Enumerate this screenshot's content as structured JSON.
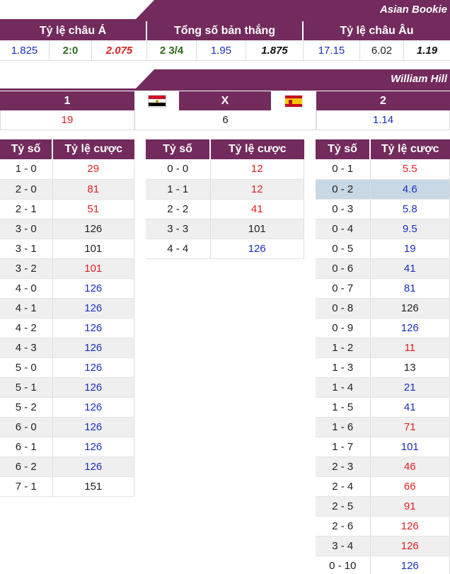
{
  "asian_bookie": {
    "title": "Asian Bookie",
    "headers": [
      "Tỷ lệ châu Á",
      "Tổng số bản thắng",
      "Tỷ lệ châu Âu"
    ],
    "values": [
      "1.825",
      "2:0",
      "2.075",
      "2 3/4",
      "1.95",
      "1.875",
      "17.15",
      "6.02",
      "1.19"
    ]
  },
  "william_hill": {
    "title": "William Hill",
    "home_label": "1",
    "draw_label": "X",
    "away_label": "2",
    "home_flag": "egypt-flag-icon",
    "away_flag": "spain-flag-icon",
    "home_value": "19",
    "draw_value": "6",
    "away_value": "1.14"
  },
  "score_tables": {
    "header_score": "Tỷ số",
    "header_odds": "Tỷ lệ cược",
    "home_wins": [
      {
        "score": "1 - 0",
        "odds": "29",
        "color": "red"
      },
      {
        "score": "2 - 0",
        "odds": "81",
        "color": "red"
      },
      {
        "score": "2 - 1",
        "odds": "51",
        "color": "red"
      },
      {
        "score": "3 - 0",
        "odds": "126",
        "color": "black"
      },
      {
        "score": "3 - 1",
        "odds": "101",
        "color": "black"
      },
      {
        "score": "3 - 2",
        "odds": "101",
        "color": "red"
      },
      {
        "score": "4 - 0",
        "odds": "126",
        "color": "blue"
      },
      {
        "score": "4 - 1",
        "odds": "126",
        "color": "blue"
      },
      {
        "score": "4 - 2",
        "odds": "126",
        "color": "blue"
      },
      {
        "score": "4 - 3",
        "odds": "126",
        "color": "blue"
      },
      {
        "score": "5 - 0",
        "odds": "126",
        "color": "blue"
      },
      {
        "score": "5 - 1",
        "odds": "126",
        "color": "blue"
      },
      {
        "score": "5 - 2",
        "odds": "126",
        "color": "blue"
      },
      {
        "score": "6 - 0",
        "odds": "126",
        "color": "blue"
      },
      {
        "score": "6 - 1",
        "odds": "126",
        "color": "blue"
      },
      {
        "score": "6 - 2",
        "odds": "126",
        "color": "blue"
      },
      {
        "score": "7 - 1",
        "odds": "151",
        "color": "black"
      }
    ],
    "draws": [
      {
        "score": "0 - 0",
        "odds": "12",
        "color": "red"
      },
      {
        "score": "1 - 1",
        "odds": "12",
        "color": "red"
      },
      {
        "score": "2 - 2",
        "odds": "41",
        "color": "red"
      },
      {
        "score": "3 - 3",
        "odds": "101",
        "color": "black"
      },
      {
        "score": "4 - 4",
        "odds": "126",
        "color": "blue"
      }
    ],
    "away_wins": [
      {
        "score": "0 - 1",
        "odds": "5.5",
        "color": "red"
      },
      {
        "score": "0 - 2",
        "odds": "4.6",
        "color": "blue",
        "highlight": true
      },
      {
        "score": "0 - 3",
        "odds": "5.8",
        "color": "blue"
      },
      {
        "score": "0 - 4",
        "odds": "9.5",
        "color": "blue"
      },
      {
        "score": "0 - 5",
        "odds": "19",
        "color": "blue"
      },
      {
        "score": "0 - 6",
        "odds": "41",
        "color": "blue"
      },
      {
        "score": "0 - 7",
        "odds": "81",
        "color": "blue"
      },
      {
        "score": "0 - 8",
        "odds": "126",
        "color": "black"
      },
      {
        "score": "0 - 9",
        "odds": "126",
        "color": "blue"
      },
      {
        "score": "1 - 2",
        "odds": "11",
        "color": "red"
      },
      {
        "score": "1 - 3",
        "odds": "13",
        "color": "black"
      },
      {
        "score": "1 - 4",
        "odds": "21",
        "color": "blue"
      },
      {
        "score": "1 - 5",
        "odds": "41",
        "color": "blue"
      },
      {
        "score": "1 - 6",
        "odds": "71",
        "color": "red"
      },
      {
        "score": "1 - 7",
        "odds": "101",
        "color": "blue"
      },
      {
        "score": "2 - 3",
        "odds": "46",
        "color": "red"
      },
      {
        "score": "2 - 4",
        "odds": "66",
        "color": "red"
      },
      {
        "score": "2 - 5",
        "odds": "91",
        "color": "red"
      },
      {
        "score": "2 - 6",
        "odds": "126",
        "color": "red"
      },
      {
        "score": "3 - 4",
        "odds": "126",
        "color": "red"
      },
      {
        "score": "0 - 10",
        "odds": "126",
        "color": "blue"
      }
    ]
  },
  "colors": {
    "header_bg": "#722b5c",
    "blue": "#1a2fbf",
    "red": "#e02020",
    "green": "#2d6a1e",
    "highlight": "#c8d8e4"
  }
}
